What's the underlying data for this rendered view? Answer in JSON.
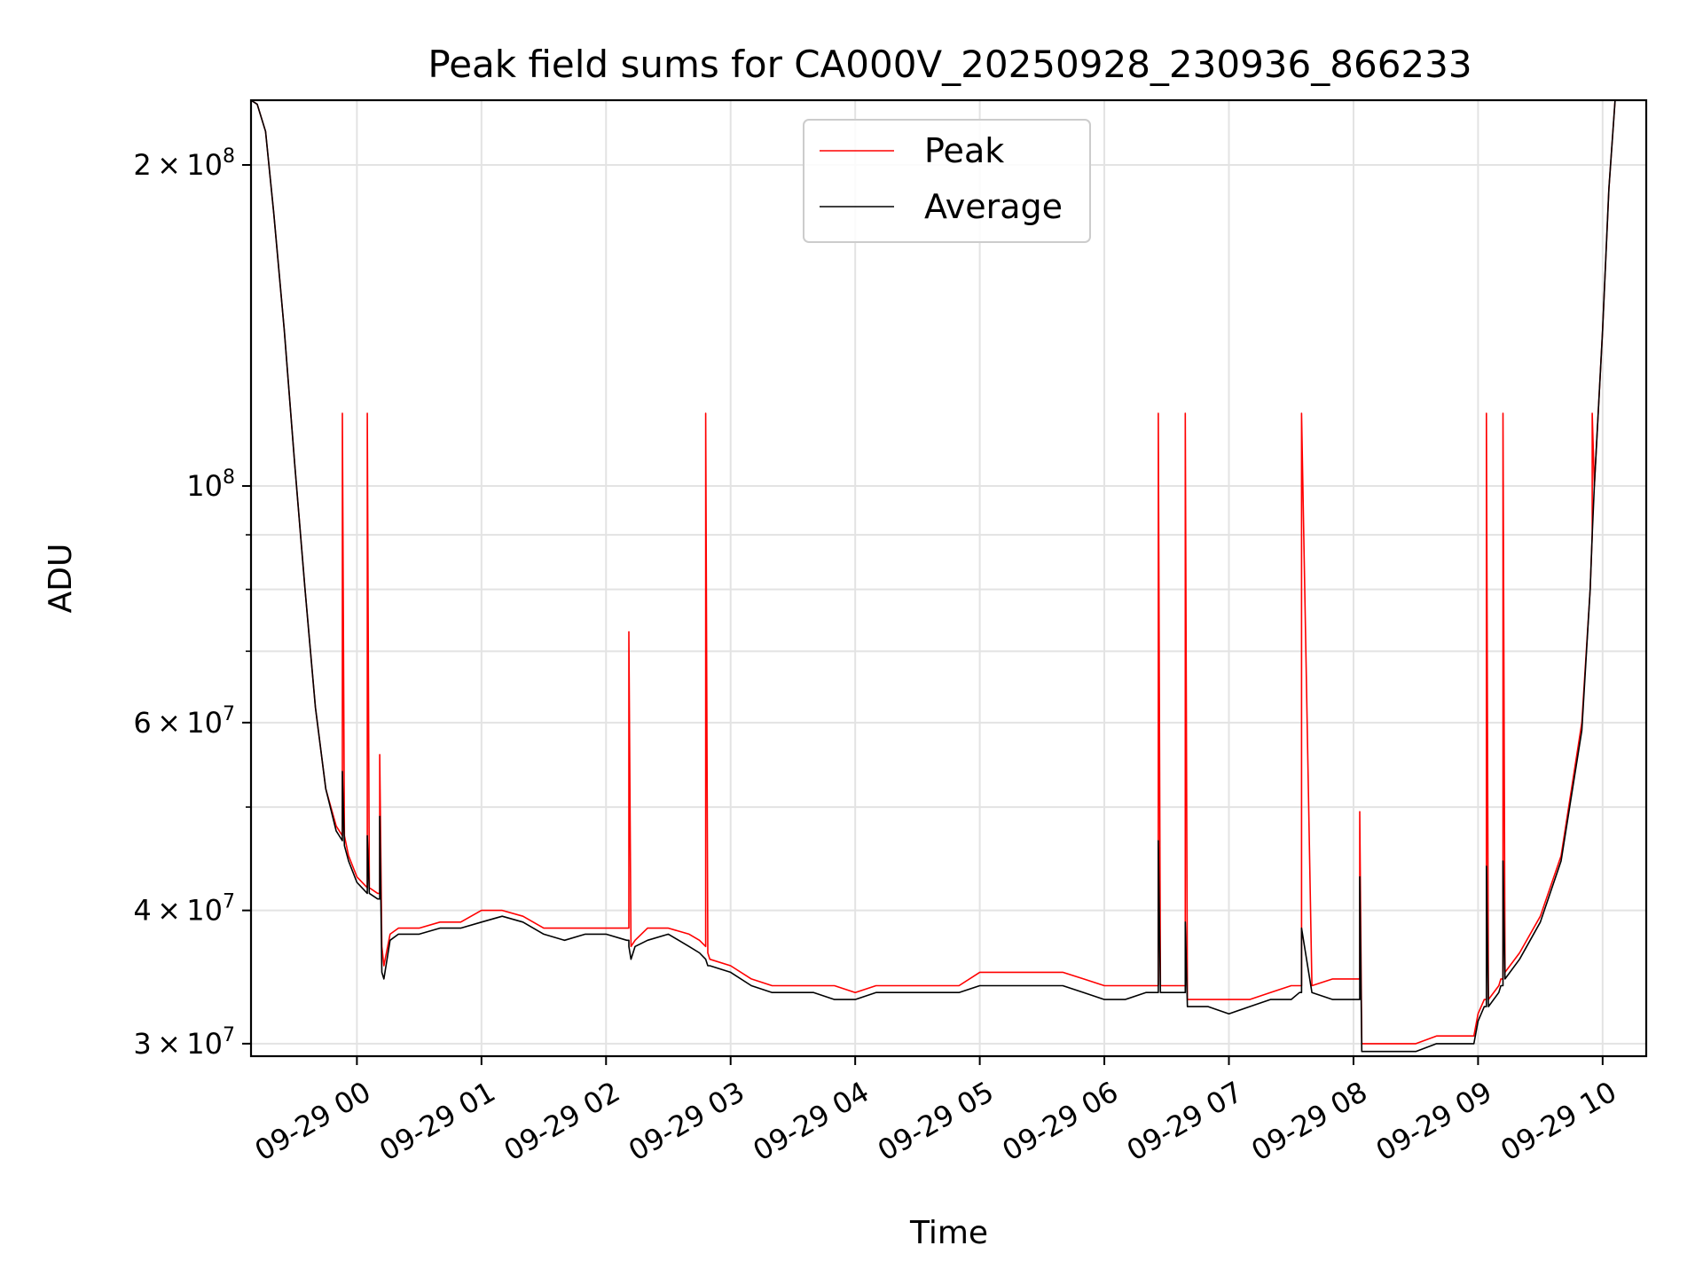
{
  "chart_data": {
    "type": "line",
    "title": "Peak field sums for CA000V_20250928_230936_866233",
    "xlabel": "Time",
    "ylabel": "ADU",
    "y_scale": "log",
    "ylim": [
      29200000,
      230000000
    ],
    "xlim": [
      "09-28 23:09",
      "09-29 10:21"
    ],
    "grid": true,
    "legend_position": "top-center",
    "x_ticks": [
      "09-29 00",
      "09-29 01",
      "09-29 02",
      "09-29 03",
      "09-29 04",
      "09-29 05",
      "09-29 06",
      "09-29 07",
      "09-29 08",
      "09-29 09",
      "09-29 10"
    ],
    "x_tick_times": [
      "09-29 00:00",
      "09-29 01:00",
      "09-29 02:00",
      "09-29 03:00",
      "09-29 04:00",
      "09-29 05:00",
      "09-29 06:00",
      "09-29 07:00",
      "09-29 08:00",
      "09-29 09:00",
      "09-29 10:00"
    ],
    "y_ticks": [
      {
        "value": 30000000,
        "mant": "3",
        "exp": "7",
        "kind": "sci"
      },
      {
        "value": 40000000,
        "mant": "4",
        "exp": "7",
        "kind": "sci"
      },
      {
        "value": 60000000,
        "mant": "6",
        "exp": "7",
        "kind": "sci"
      },
      {
        "value": 100000000,
        "mant": "",
        "exp": "8",
        "kind": "pow"
      },
      {
        "value": 200000000,
        "mant": "2",
        "exp": "8",
        "kind": "sci"
      }
    ],
    "y_minor_ticks": [
      50000000,
      70000000,
      80000000,
      90000000
    ],
    "series": [
      {
        "name": "Peak",
        "color": "#ff0000",
        "x": [
          "09-28 23:09",
          "09-28 23:12",
          "09-28 23:16",
          "09-28 23:20",
          "09-28 23:25",
          "09-28 23:30",
          "09-28 23:35",
          "09-28 23:40",
          "09-28 23:45",
          "09-28 23:50",
          "09-28 23:53",
          "09-28 23:53",
          "09-28 23:54",
          "09-28 23:56",
          "09-29 00:00",
          "09-29 00:05",
          "09-29 00:05",
          "09-29 00:06",
          "09-29 00:10",
          "09-29 00:11",
          "09-29 00:11",
          "09-29 00:12",
          "09-29 00:13",
          "09-29 00:16",
          "09-29 00:20",
          "09-29 00:30",
          "09-29 00:40",
          "09-29 00:50",
          "09-29 01:00",
          "09-29 01:10",
          "09-29 01:20",
          "09-29 01:30",
          "09-29 01:40",
          "09-29 01:50",
          "09-29 02:00",
          "09-29 02:10",
          "09-29 02:11",
          "09-29 02:11",
          "09-29 02:12",
          "09-29 02:14",
          "09-29 02:20",
          "09-29 02:30",
          "09-29 02:40",
          "09-29 02:45",
          "09-29 02:48",
          "09-29 02:48",
          "09-29 02:49",
          "09-29 02:50",
          "09-29 03:00",
          "09-29 03:10",
          "09-29 03:20",
          "09-29 03:30",
          "09-29 03:40",
          "09-29 03:50",
          "09-29 04:00",
          "09-29 04:10",
          "09-29 04:20",
          "09-29 04:30",
          "09-29 04:40",
          "09-29 04:50",
          "09-29 05:00",
          "09-29 05:10",
          "09-29 05:20",
          "09-29 05:30",
          "09-29 05:40",
          "09-29 05:50",
          "09-29 06:00",
          "09-29 06:10",
          "09-29 06:20",
          "09-29 06:26",
          "09-29 06:26",
          "09-29 06:27",
          "09-29 06:30",
          "09-29 06:38",
          "09-29 06:39",
          "09-29 06:39",
          "09-29 06:40",
          "09-29 06:50",
          "09-29 07:00",
          "09-29 07:10",
          "09-29 07:20",
          "09-29 07:30",
          "09-29 07:34",
          "09-29 07:35",
          "09-29 07:35",
          "09-29 07:40",
          "09-29 07:50",
          "09-29 08:00",
          "09-29 08:03",
          "09-29 08:03",
          "09-29 08:04",
          "09-29 08:05",
          "09-29 08:10",
          "09-29 08:20",
          "09-29 08:30",
          "09-29 08:40",
          "09-29 08:50",
          "09-29 08:58",
          "09-29 09:00",
          "09-29 09:03",
          "09-29 09:04",
          "09-29 09:04",
          "09-29 09:05",
          "09-29 09:10",
          "09-29 09:11",
          "09-29 09:12",
          "09-29 09:12",
          "09-29 09:13",
          "09-29 09:20",
          "09-29 09:30",
          "09-29 09:40",
          "09-29 09:50",
          "09-29 09:54",
          "09-29 09:55",
          "09-29 09:55",
          "09-29 09:56",
          "09-29 10:00",
          "09-29 10:03",
          "09-29 10:06",
          "09-29 10:12"
        ],
        "y": [
          230000000,
          228000000,
          215000000,
          180000000,
          140000000,
          105000000,
          80000000,
          62000000,
          52000000,
          48000000,
          47000000,
          117000000,
          47000000,
          45000000,
          43000000,
          42000000,
          117000000,
          42000000,
          41500000,
          41500000,
          56000000,
          37000000,
          35500000,
          38000000,
          38500000,
          38500000,
          39000000,
          39000000,
          40000000,
          40000000,
          39500000,
          38500000,
          38500000,
          38500000,
          38500000,
          38500000,
          38500000,
          73000000,
          37000000,
          37500000,
          38500000,
          38500000,
          38000000,
          37500000,
          37000000,
          117000000,
          36500000,
          36000000,
          35500000,
          34500000,
          34000000,
          34000000,
          34000000,
          34000000,
          33500000,
          34000000,
          34000000,
          34000000,
          34000000,
          34000000,
          35000000,
          35000000,
          35000000,
          35000000,
          35000000,
          34500000,
          34000000,
          34000000,
          34000000,
          34000000,
          117000000,
          34000000,
          34000000,
          34000000,
          34000000,
          117000000,
          33000000,
          33000000,
          33000000,
          33000000,
          33500000,
          34000000,
          34000000,
          34000000,
          117000000,
          34000000,
          34500000,
          34500000,
          34500000,
          49500000,
          30000000,
          30000000,
          30000000,
          30000000,
          30000000,
          30500000,
          30500000,
          30500000,
          32000000,
          33000000,
          33000000,
          117000000,
          33000000,
          34000000,
          34500000,
          34500000,
          117000000,
          35000000,
          36500000,
          39500000,
          45000000,
          60000000,
          80000000,
          90000000,
          117000000,
          100000000,
          140000000,
          190000000,
          230000000,
          230000000
        ]
      },
      {
        "name": "Average",
        "color": "#000000",
        "x": [
          "09-28 23:09",
          "09-28 23:12",
          "09-28 23:16",
          "09-28 23:20",
          "09-28 23:25",
          "09-28 23:30",
          "09-28 23:35",
          "09-28 23:40",
          "09-28 23:45",
          "09-28 23:50",
          "09-28 23:53",
          "09-28 23:53",
          "09-28 23:54",
          "09-28 23:56",
          "09-29 00:00",
          "09-29 00:05",
          "09-29 00:05",
          "09-29 00:06",
          "09-29 00:10",
          "09-29 00:11",
          "09-29 00:11",
          "09-29 00:12",
          "09-29 00:13",
          "09-29 00:16",
          "09-29 00:20",
          "09-29 00:30",
          "09-29 00:40",
          "09-29 00:50",
          "09-29 01:00",
          "09-29 01:10",
          "09-29 01:20",
          "09-29 01:30",
          "09-29 01:40",
          "09-29 01:50",
          "09-29 02:00",
          "09-29 02:10",
          "09-29 02:11",
          "09-29 02:11",
          "09-29 02:12",
          "09-29 02:14",
          "09-29 02:20",
          "09-29 02:30",
          "09-29 02:40",
          "09-29 02:45",
          "09-29 02:48",
          "09-29 02:48",
          "09-29 02:49",
          "09-29 02:50",
          "09-29 03:00",
          "09-29 03:10",
          "09-29 03:20",
          "09-29 03:30",
          "09-29 03:40",
          "09-29 03:50",
          "09-29 04:00",
          "09-29 04:10",
          "09-29 04:20",
          "09-29 04:30",
          "09-29 04:40",
          "09-29 04:50",
          "09-29 05:00",
          "09-29 05:10",
          "09-29 05:20",
          "09-29 05:30",
          "09-29 05:40",
          "09-29 05:50",
          "09-29 06:00",
          "09-29 06:10",
          "09-29 06:20",
          "09-29 06:26",
          "09-29 06:26",
          "09-29 06:27",
          "09-29 06:30",
          "09-29 06:38",
          "09-29 06:39",
          "09-29 06:39",
          "09-29 06:40",
          "09-29 06:50",
          "09-29 07:00",
          "09-29 07:10",
          "09-29 07:20",
          "09-29 07:30",
          "09-29 07:34",
          "09-29 07:35",
          "09-29 07:35",
          "09-29 07:40",
          "09-29 07:50",
          "09-29 08:00",
          "09-29 08:03",
          "09-29 08:03",
          "09-29 08:04",
          "09-29 08:05",
          "09-29 08:10",
          "09-29 08:20",
          "09-29 08:30",
          "09-29 08:40",
          "09-29 08:50",
          "09-29 08:58",
          "09-29 09:00",
          "09-29 09:03",
          "09-29 09:04",
          "09-29 09:04",
          "09-29 09:05",
          "09-29 09:10",
          "09-29 09:11",
          "09-29 09:12",
          "09-29 09:12",
          "09-29 09:13",
          "09-29 09:20",
          "09-29 09:30",
          "09-29 09:40",
          "09-29 09:50",
          "09-29 09:54",
          "09-29 09:55",
          "09-29 09:55",
          "09-29 09:56",
          "09-29 10:00",
          "09-29 10:03",
          "09-29 10:06",
          "09-29 10:12"
        ],
        "y": [
          230000000,
          228000000,
          215000000,
          180000000,
          140000000,
          105000000,
          80000000,
          62000000,
          52000000,
          47500000,
          46500000,
          54000000,
          46000000,
          44500000,
          42500000,
          41500000,
          47000000,
          41500000,
          41000000,
          41000000,
          49000000,
          35000000,
          34500000,
          37500000,
          38000000,
          38000000,
          38500000,
          38500000,
          39000000,
          39500000,
          39000000,
          38000000,
          37500000,
          38000000,
          38000000,
          37500000,
          37500000,
          37000000,
          36000000,
          37000000,
          37500000,
          38000000,
          37000000,
          36500000,
          36000000,
          36000000,
          35500000,
          35500000,
          35000000,
          34000000,
          33500000,
          33500000,
          33500000,
          33000000,
          33000000,
          33500000,
          33500000,
          33500000,
          33500000,
          33500000,
          34000000,
          34000000,
          34000000,
          34000000,
          34000000,
          33500000,
          33000000,
          33000000,
          33500000,
          33500000,
          46500000,
          33500000,
          33500000,
          33500000,
          33500000,
          39000000,
          32500000,
          32500000,
          32000000,
          32500000,
          33000000,
          33000000,
          33500000,
          33500000,
          38500000,
          33500000,
          33000000,
          33000000,
          33000000,
          43000000,
          29500000,
          29500000,
          29500000,
          29500000,
          29500000,
          30000000,
          30000000,
          30000000,
          31500000,
          32500000,
          32500000,
          44000000,
          32500000,
          33500000,
          34000000,
          34000000,
          44500000,
          34500000,
          36000000,
          39000000,
          44500000,
          59000000,
          80000000,
          90000000,
          90000000,
          100000000,
          140000000,
          190000000,
          230000000,
          230000000
        ]
      }
    ]
  }
}
